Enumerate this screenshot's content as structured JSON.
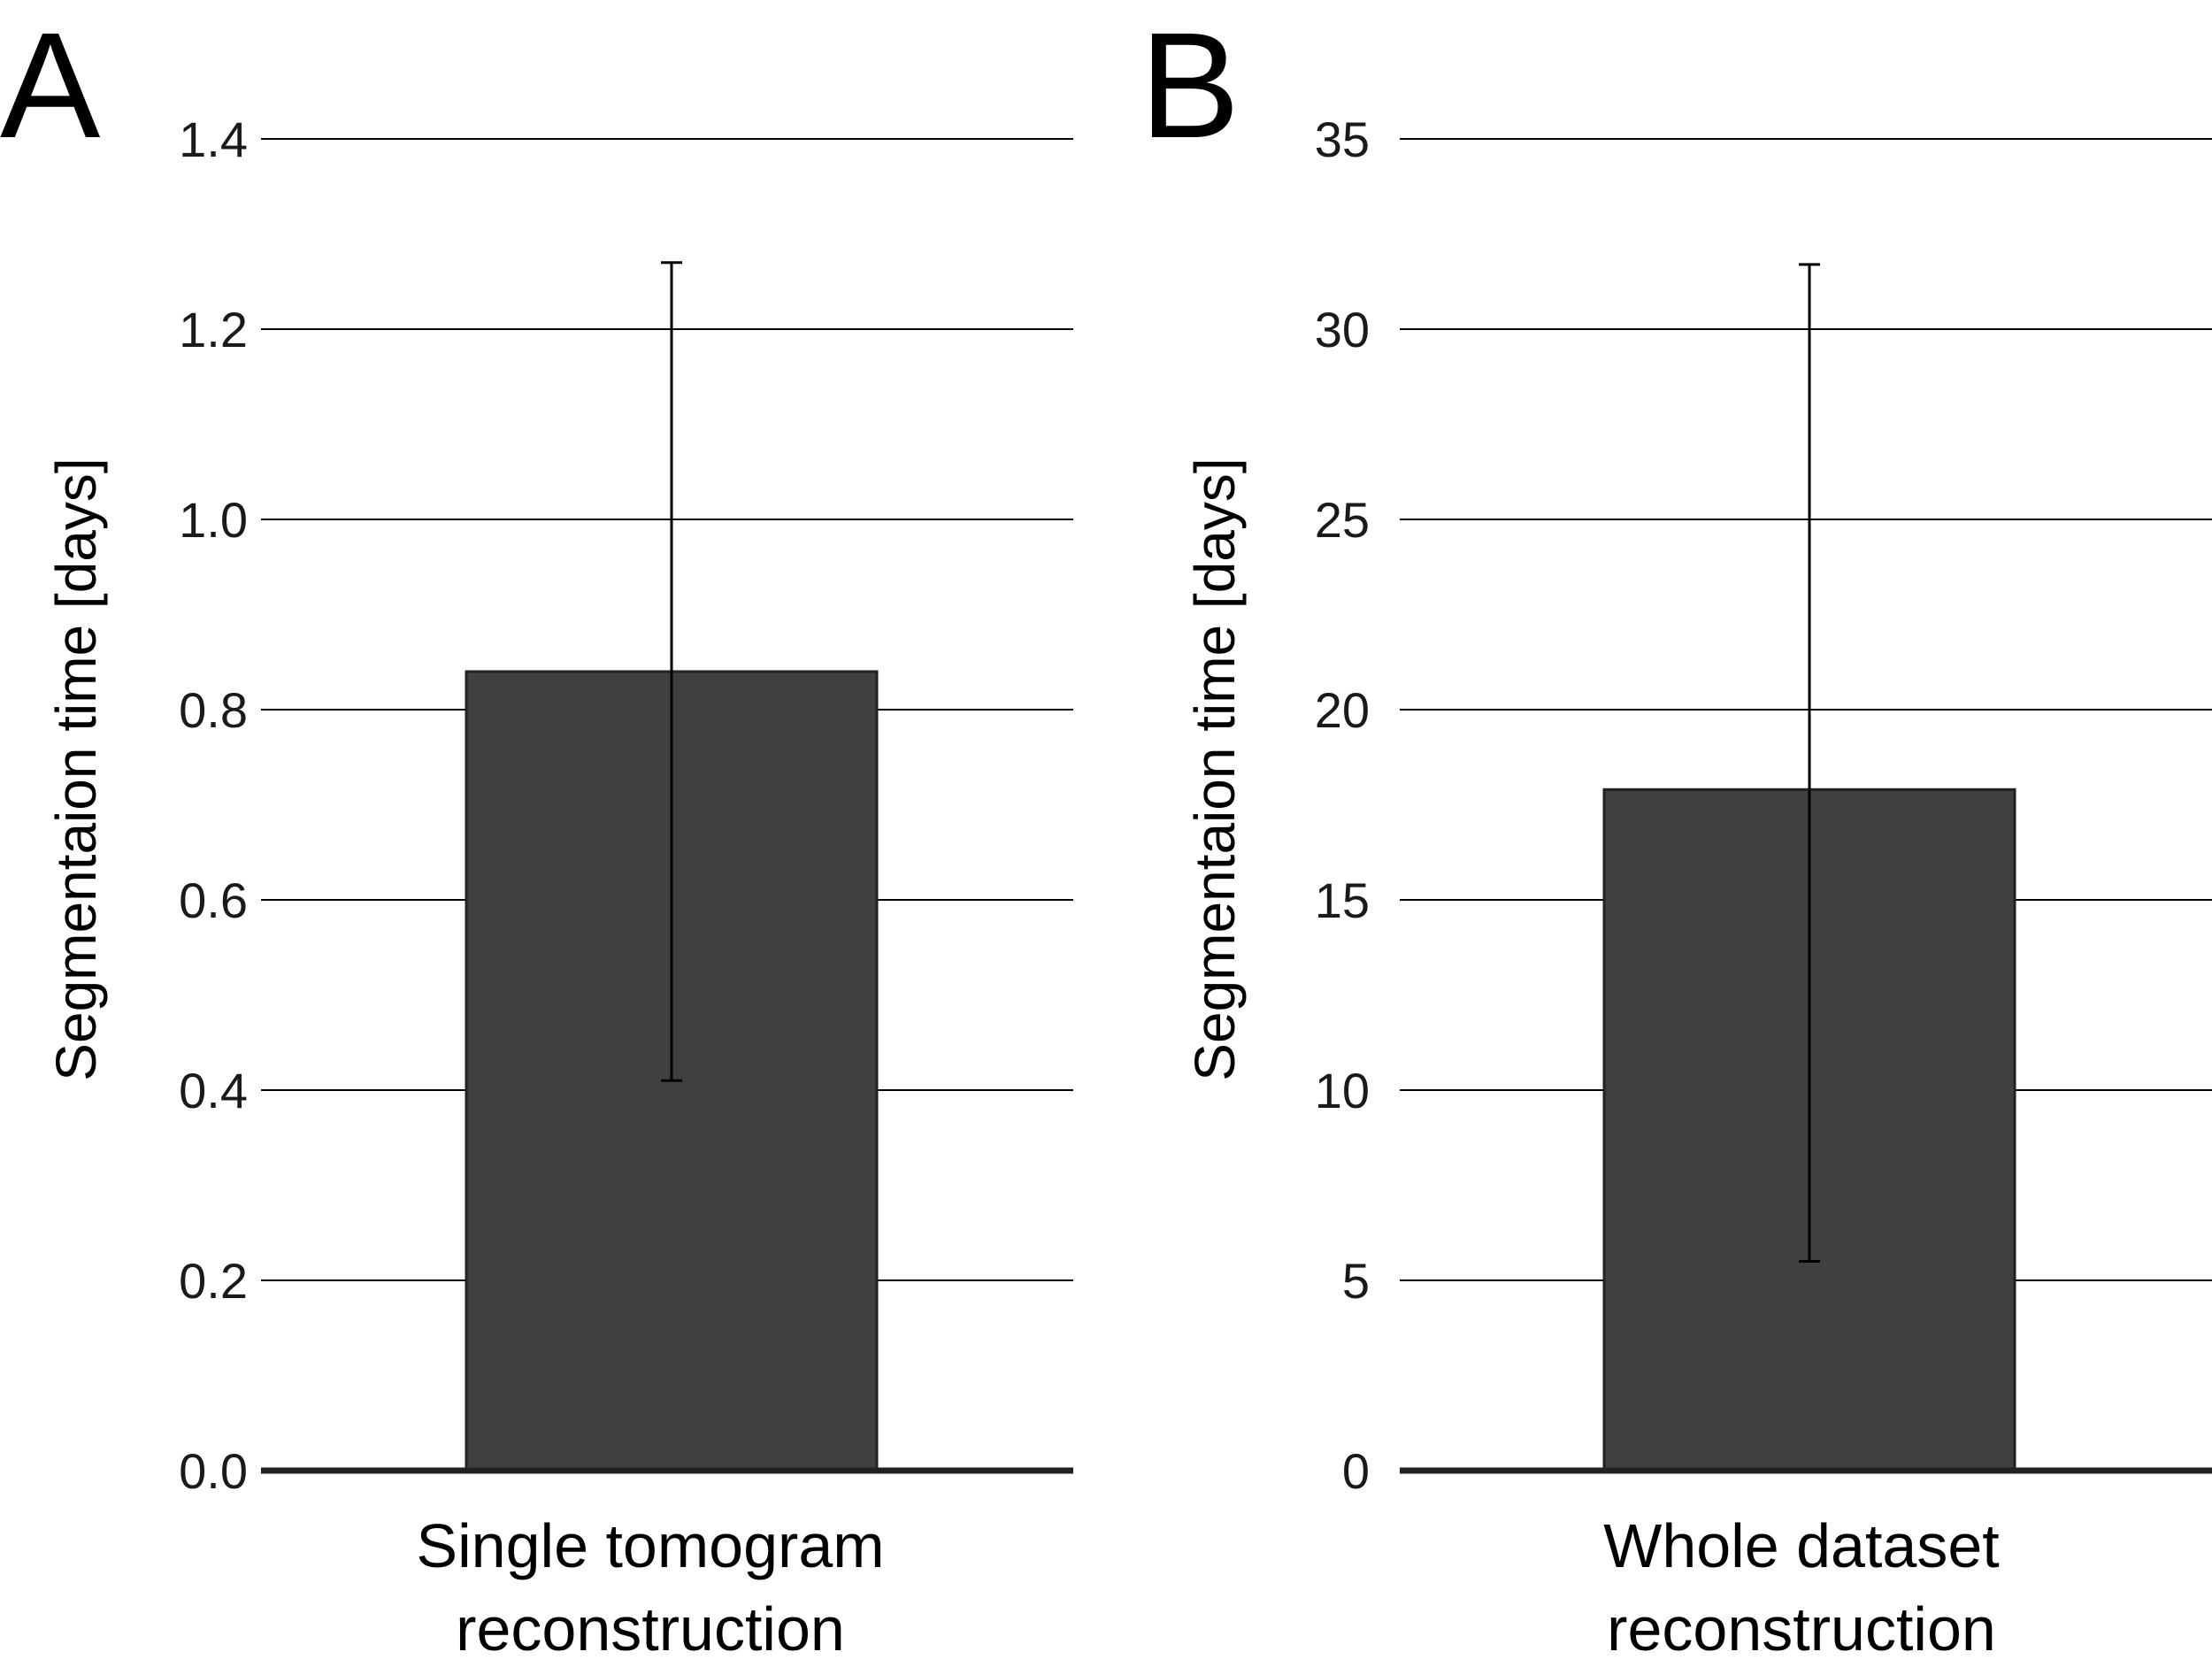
{
  "chart_data": [
    {
      "type": "bar",
      "panel": "A",
      "categories": [
        "Single tomogram reconstruction"
      ],
      "category_lines": [
        "Single tomogram",
        "reconstruction"
      ],
      "values": [
        0.84
      ],
      "error_bars": [
        {
          "low": 0.41,
          "high": 1.27
        }
      ],
      "ylabel": "Segmentaion time [days]",
      "ylim": [
        0,
        1.4
      ],
      "yticks": [
        0.0,
        0.2,
        0.4,
        0.6,
        0.8,
        1.0,
        1.2,
        1.4
      ],
      "ytick_labels": [
        "0.0",
        "0.2",
        "0.4",
        "0.6",
        "0.8",
        "1.0",
        "1.2",
        "1.4"
      ],
      "grid": true,
      "bar_color": "#404041"
    },
    {
      "type": "bar",
      "panel": "B",
      "categories": [
        "Whole dataset reconstruction"
      ],
      "category_lines": [
        "Whole dataset",
        "reconstruction"
      ],
      "values": [
        17.9
      ],
      "error_bars": [
        {
          "low": 5.5,
          "high": 31.7
        }
      ],
      "ylabel": "Segmentaion time [days]",
      "ylim": [
        0,
        35
      ],
      "yticks": [
        0,
        5,
        10,
        15,
        20,
        25,
        30,
        35
      ],
      "ytick_labels": [
        "0",
        "5",
        "10",
        "15",
        "20",
        "25",
        "30",
        "35"
      ],
      "grid": true,
      "bar_color": "#404041"
    }
  ]
}
